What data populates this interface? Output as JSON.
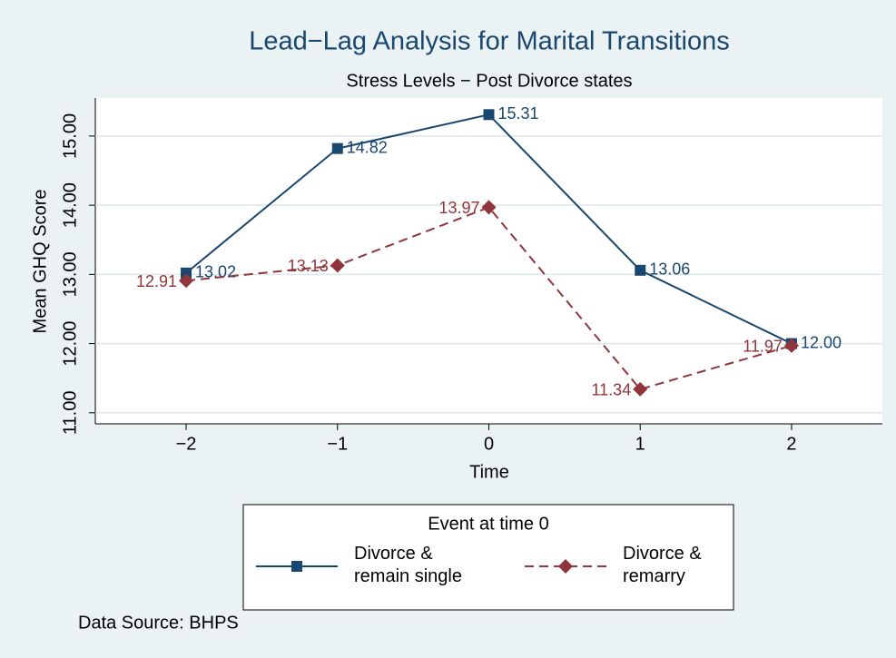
{
  "chart_data": {
    "type": "line",
    "title": "Lead−Lag Analysis for Marital Transitions",
    "subtitle": "Stress Levels − Post Divorce states",
    "xlabel": "Time",
    "ylabel": "Mean GHQ Score",
    "x": [
      -2,
      -1,
      0,
      1,
      2
    ],
    "series": [
      {
        "name": "Divorce & remain single",
        "color": "#1a476f",
        "marker": "square",
        "dash": false,
        "values": [
          13.02,
          14.82,
          15.31,
          13.06,
          12.0
        ],
        "value_labels": [
          "13.02",
          "14.82",
          "15.31",
          "13.06",
          "12.00"
        ]
      },
      {
        "name": "Divorce & remarry",
        "color": "#90353b",
        "marker": "diamond",
        "dash": true,
        "values": [
          12.91,
          13.13,
          13.97,
          11.34,
          11.97
        ],
        "value_labels": [
          "12.91",
          "13.13",
          "13.97",
          "11.34",
          "11.97"
        ]
      }
    ],
    "xlim": [
      -2.6,
      2.6
    ],
    "xticks": [
      {
        "value": -2,
        "label": "−2"
      },
      {
        "value": -1,
        "label": "−1"
      },
      0,
      1,
      2
    ],
    "ylim": [
      10.84,
      15.55
    ],
    "yticks": [
      {
        "value": 11,
        "label": "11.00"
      },
      {
        "value": 12,
        "label": "12.00"
      },
      {
        "value": 13,
        "label": "13.00"
      },
      {
        "value": 14,
        "label": "14.00"
      },
      {
        "value": 15,
        "label": "15.00"
      }
    ],
    "grid": true,
    "legend_title": "Event at time 0",
    "legend_position": "bottom",
    "note": "Data Source: BHPS"
  }
}
